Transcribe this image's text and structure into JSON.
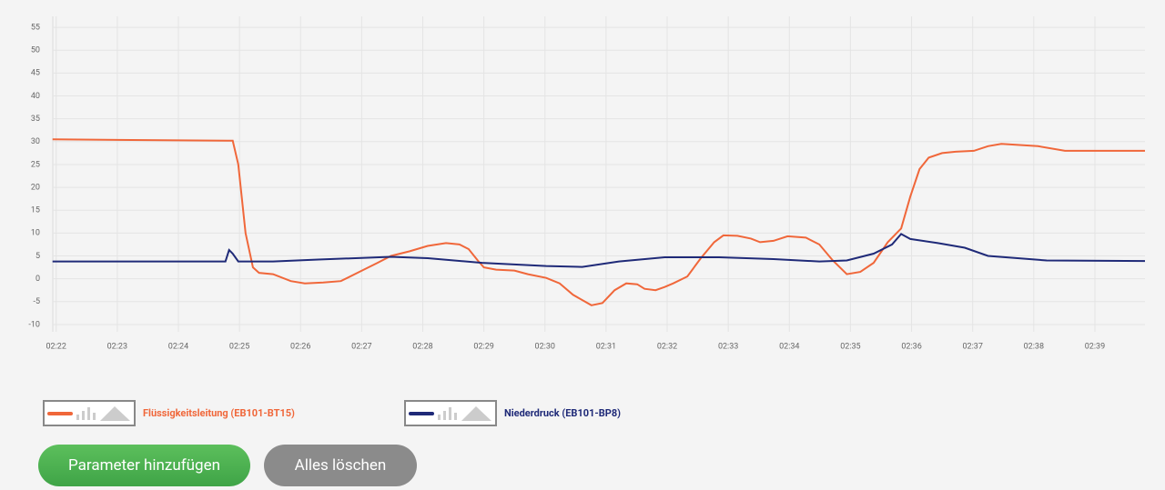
{
  "chart_data": {
    "type": "line",
    "xlim": [
      141.9,
      159.82
    ],
    "ylim": [
      -11.6,
      57.4
    ],
    "xticks": [
      {
        "value": 142,
        "label": "02:22"
      },
      {
        "value": 143,
        "label": "02:23"
      },
      {
        "value": 144,
        "label": "02:24"
      },
      {
        "value": 145,
        "label": "02:25"
      },
      {
        "value": 146,
        "label": "02:26"
      },
      {
        "value": 147,
        "label": "02:27"
      },
      {
        "value": 148,
        "label": "02:28"
      },
      {
        "value": 149,
        "label": "02:29"
      },
      {
        "value": 150,
        "label": "02:30"
      },
      {
        "value": 151,
        "label": "02:31"
      },
      {
        "value": 152,
        "label": "02:32"
      },
      {
        "value": 153,
        "label": "02:33"
      },
      {
        "value": 154,
        "label": "02:34"
      },
      {
        "value": 155,
        "label": "02:35"
      },
      {
        "value": 156,
        "label": "02:36"
      },
      {
        "value": 157,
        "label": "02:37"
      },
      {
        "value": 158,
        "label": "02:38"
      },
      {
        "value": 159,
        "label": "02:39"
      }
    ],
    "yticks": [
      -10,
      -5,
      0,
      5,
      10,
      15,
      20,
      25,
      30,
      35,
      40,
      45,
      50,
      55
    ],
    "grid": true,
    "legend": "bottom",
    "series": [
      {
        "name": "Flüssigkeitsleitung (EB101-BT15)",
        "color": "#f0673a",
        "x": [
          141.94,
          144.8,
          144.89,
          144.98,
          145.1,
          145.22,
          145.32,
          145.55,
          145.84,
          146.07,
          146.37,
          146.66,
          146.96,
          147.26,
          147.48,
          147.78,
          148.08,
          148.38,
          148.6,
          148.75,
          148.9,
          149.0,
          149.2,
          149.5,
          149.72,
          150.02,
          150.24,
          150.46,
          150.76,
          150.94,
          151.14,
          151.33,
          151.51,
          151.63,
          151.81,
          151.96,
          152.1,
          152.33,
          152.55,
          152.77,
          152.92,
          153.15,
          153.37,
          153.52,
          153.74,
          153.97,
          154.27,
          154.49,
          154.71,
          154.94,
          155.16,
          155.38,
          155.61,
          155.83,
          155.98,
          156.13,
          156.28,
          156.5,
          156.72,
          157.02,
          157.25,
          157.47,
          158.07,
          158.51,
          159.82
        ],
        "values": [
          30.5,
          30.2,
          30.2,
          25,
          10,
          2.5,
          1.3,
          1,
          -0.5,
          -1,
          -0.8,
          -0.5,
          1.5,
          3.5,
          5,
          6,
          7.2,
          7.8,
          7.5,
          6.5,
          4,
          2.5,
          2,
          1.8,
          1,
          0.2,
          -1,
          -3.5,
          -5.8,
          -5.3,
          -2.5,
          -1,
          -1.2,
          -2.2,
          -2.5,
          -1.8,
          -1,
          0.5,
          4.5,
          8,
          9.5,
          9.4,
          8.8,
          8,
          8.3,
          9.3,
          9,
          7.5,
          4,
          1,
          1.5,
          3.5,
          8,
          11,
          18,
          24,
          26.5,
          27.5,
          27.8,
          28,
          29,
          29.5,
          29,
          28,
          28
        ]
      },
      {
        "name": "Niederdruck (EB101-BP8)",
        "color": "#1f2a78",
        "x": [
          141.94,
          144.77,
          144.83,
          144.89,
          144.98,
          145.55,
          146.29,
          147.48,
          148.08,
          148.97,
          150.02,
          150.61,
          151.21,
          151.96,
          152.85,
          153.74,
          154.49,
          154.94,
          155.38,
          155.68,
          155.83,
          155.98,
          156.43,
          156.87,
          157.25,
          158.21,
          159.82
        ],
        "values": [
          3.8,
          3.8,
          6.3,
          5.5,
          3.8,
          3.8,
          4.2,
          4.8,
          4.5,
          3.5,
          2.8,
          2.6,
          3.8,
          4.7,
          4.7,
          4.3,
          3.8,
          4,
          5.5,
          7.5,
          9.8,
          8.7,
          7.8,
          6.8,
          5,
          4,
          3.9
        ]
      }
    ]
  },
  "buttons": [
    "Parameter hinzufügen",
    "Alles löschen"
  ]
}
